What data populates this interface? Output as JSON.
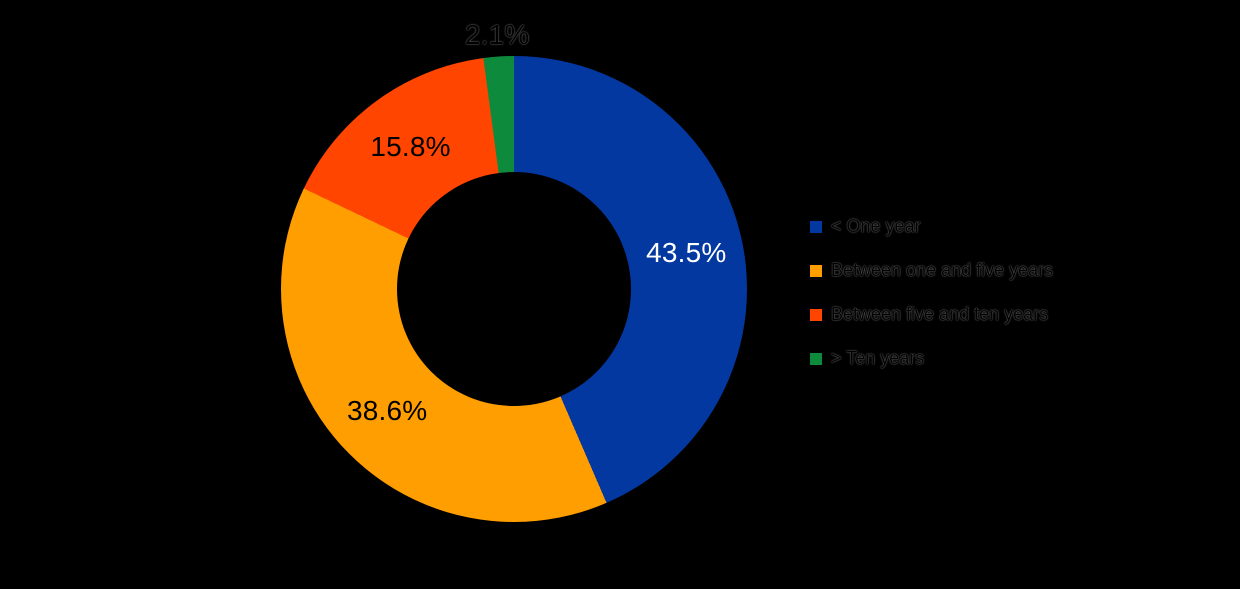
{
  "chart_data": {
    "type": "pie",
    "subtype": "donut",
    "title": "",
    "background": "#000000",
    "start_angle_deg": 0,
    "direction": "clockwise",
    "legend_position": "right",
    "legend_text_color": "#000000",
    "segments": [
      {
        "label": "< One year",
        "value": 43.5,
        "display": "43.5%",
        "color": "#0338A0",
        "label_color": "#FFFFFF"
      },
      {
        "label": "Between one and five years",
        "value": 38.6,
        "display": "38.6%",
        "color": "#FF9E00",
        "label_color": "#000000"
      },
      {
        "label": "Between five and ten years",
        "value": 15.8,
        "display": "15.8%",
        "color": "#FF4500",
        "label_color": "#000000"
      },
      {
        "label": "> Ten years",
        "value": 2.1,
        "display": "2.1%",
        "color": "#0E8A3C",
        "label_color": "#000000"
      }
    ]
  }
}
